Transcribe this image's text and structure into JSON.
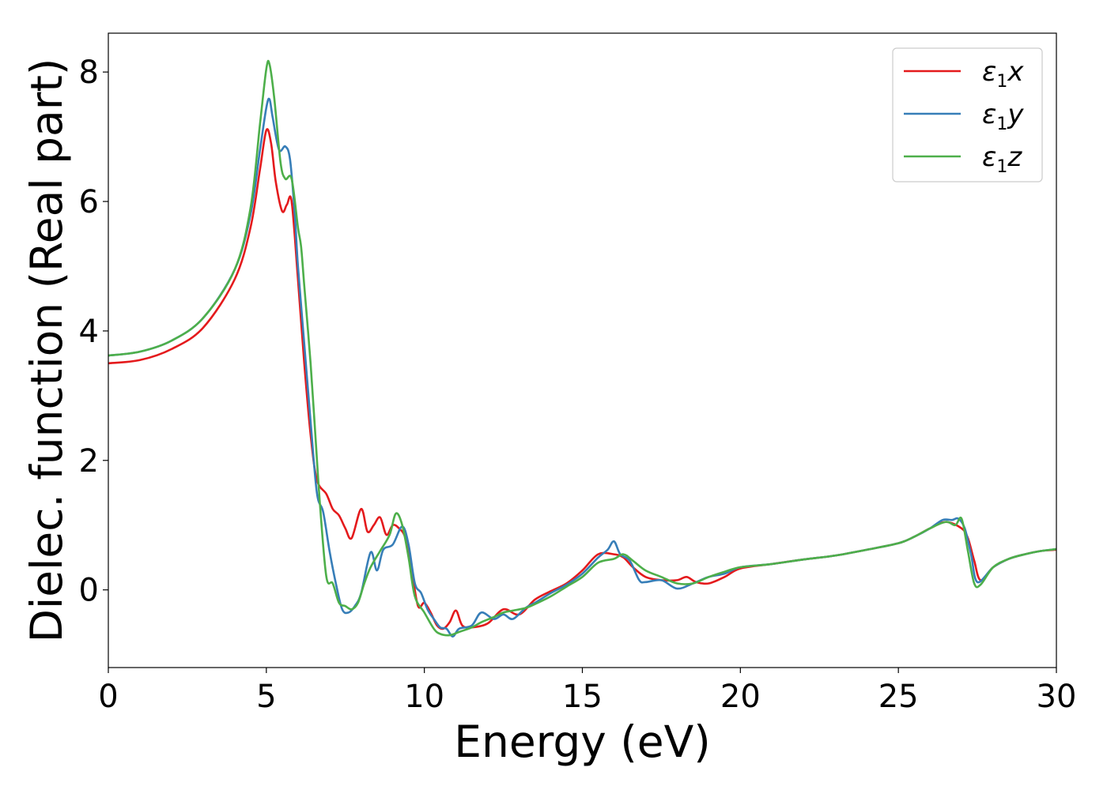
{
  "chart_data": {
    "type": "line",
    "xlabel": "Energy (eV)",
    "ylabel": "Dielec. function (Real part)",
    "xlim": [
      0,
      30
    ],
    "ylim": [
      -1.2,
      8.6
    ],
    "xticks": [
      0,
      5,
      10,
      15,
      20,
      25,
      30
    ],
    "yticks": [
      0,
      2,
      4,
      6,
      8
    ],
    "grid": false,
    "legend_position": "top-right",
    "series": [
      {
        "name": "ε1x",
        "legend": {
          "base": "ε",
          "sub": "1",
          "var": "x"
        },
        "color": "#e41a1c",
        "points": [
          [
            0,
            3.5
          ],
          [
            1,
            3.55
          ],
          [
            2,
            3.72
          ],
          [
            3,
            4.05
          ],
          [
            4,
            4.8
          ],
          [
            4.5,
            5.6
          ],
          [
            4.8,
            6.5
          ],
          [
            5.0,
            7.1
          ],
          [
            5.15,
            6.9
          ],
          [
            5.3,
            6.3
          ],
          [
            5.5,
            5.85
          ],
          [
            5.65,
            5.95
          ],
          [
            5.8,
            6.0
          ],
          [
            6.0,
            4.8
          ],
          [
            6.2,
            3.5
          ],
          [
            6.4,
            2.4
          ],
          [
            6.6,
            1.7
          ],
          [
            6.9,
            1.48
          ],
          [
            7.1,
            1.25
          ],
          [
            7.3,
            1.15
          ],
          [
            7.5,
            0.95
          ],
          [
            7.7,
            0.8
          ],
          [
            8.0,
            1.25
          ],
          [
            8.2,
            0.9
          ],
          [
            8.4,
            1.0
          ],
          [
            8.6,
            1.12
          ],
          [
            8.8,
            0.85
          ],
          [
            9.0,
            1.0
          ],
          [
            9.2,
            0.95
          ],
          [
            9.4,
            0.8
          ],
          [
            9.6,
            0.3
          ],
          [
            9.8,
            -0.25
          ],
          [
            10.0,
            -0.2
          ],
          [
            10.2,
            -0.35
          ],
          [
            10.4,
            -0.55
          ],
          [
            10.6,
            -0.6
          ],
          [
            10.8,
            -0.5
          ],
          [
            11.0,
            -0.32
          ],
          [
            11.2,
            -0.55
          ],
          [
            11.5,
            -0.58
          ],
          [
            12.0,
            -0.52
          ],
          [
            12.5,
            -0.3
          ],
          [
            13.0,
            -0.38
          ],
          [
            13.5,
            -0.15
          ],
          [
            14.0,
            -0.02
          ],
          [
            14.5,
            0.1
          ],
          [
            15.0,
            0.3
          ],
          [
            15.5,
            0.55
          ],
          [
            16.0,
            0.55
          ],
          [
            16.3,
            0.5
          ],
          [
            16.6,
            0.35
          ],
          [
            17.0,
            0.2
          ],
          [
            17.5,
            0.15
          ],
          [
            18.0,
            0.15
          ],
          [
            18.3,
            0.2
          ],
          [
            18.6,
            0.12
          ],
          [
            19.0,
            0.1
          ],
          [
            19.5,
            0.2
          ],
          [
            20,
            0.33
          ],
          [
            21,
            0.4
          ],
          [
            22,
            0.47
          ],
          [
            23,
            0.53
          ],
          [
            24,
            0.62
          ],
          [
            25,
            0.72
          ],
          [
            25.5,
            0.82
          ],
          [
            26,
            0.95
          ],
          [
            26.5,
            1.05
          ],
          [
            27.0,
            0.95
          ],
          [
            27.2,
            0.8
          ],
          [
            27.4,
            0.45
          ],
          [
            27.6,
            0.15
          ],
          [
            28,
            0.35
          ],
          [
            28.5,
            0.48
          ],
          [
            29,
            0.55
          ],
          [
            29.5,
            0.6
          ],
          [
            30,
            0.62
          ]
        ]
      },
      {
        "name": "ε1y",
        "legend": {
          "base": "ε",
          "sub": "1",
          "var": "y"
        },
        "color": "#377eb8",
        "points": [
          [
            0,
            3.62
          ],
          [
            1,
            3.68
          ],
          [
            2,
            3.85
          ],
          [
            3,
            4.2
          ],
          [
            4,
            4.95
          ],
          [
            4.5,
            5.8
          ],
          [
            4.8,
            6.8
          ],
          [
            5.0,
            7.45
          ],
          [
            5.1,
            7.58
          ],
          [
            5.2,
            7.3
          ],
          [
            5.4,
            6.8
          ],
          [
            5.6,
            6.85
          ],
          [
            5.75,
            6.65
          ],
          [
            5.9,
            5.8
          ],
          [
            6.0,
            5.0
          ],
          [
            6.2,
            3.8
          ],
          [
            6.4,
            2.6
          ],
          [
            6.6,
            1.5
          ],
          [
            6.8,
            1.2
          ],
          [
            7.0,
            0.6
          ],
          [
            7.2,
            0.1
          ],
          [
            7.4,
            -0.3
          ],
          [
            7.6,
            -0.35
          ],
          [
            7.8,
            -0.25
          ],
          [
            8.0,
            -0.05
          ],
          [
            8.3,
            0.58
          ],
          [
            8.5,
            0.3
          ],
          [
            8.7,
            0.62
          ],
          [
            9.0,
            0.7
          ],
          [
            9.3,
            0.98
          ],
          [
            9.5,
            0.7
          ],
          [
            9.7,
            0.1
          ],
          [
            9.9,
            -0.05
          ],
          [
            10.1,
            -0.3
          ],
          [
            10.3,
            -0.45
          ],
          [
            10.5,
            -0.58
          ],
          [
            10.7,
            -0.6
          ],
          [
            10.9,
            -0.72
          ],
          [
            11.1,
            -0.6
          ],
          [
            11.5,
            -0.55
          ],
          [
            11.8,
            -0.35
          ],
          [
            12.2,
            -0.45
          ],
          [
            12.5,
            -0.38
          ],
          [
            12.8,
            -0.45
          ],
          [
            13.2,
            -0.28
          ],
          [
            13.5,
            -0.2
          ],
          [
            14.0,
            -0.05
          ],
          [
            14.5,
            0.08
          ],
          [
            15.0,
            0.25
          ],
          [
            15.5,
            0.5
          ],
          [
            15.8,
            0.62
          ],
          [
            16.0,
            0.75
          ],
          [
            16.2,
            0.55
          ],
          [
            16.5,
            0.45
          ],
          [
            16.8,
            0.15
          ],
          [
            17.0,
            0.12
          ],
          [
            17.5,
            0.15
          ],
          [
            18.0,
            0.02
          ],
          [
            18.5,
            0.1
          ],
          [
            19,
            0.2
          ],
          [
            19.5,
            0.25
          ],
          [
            20,
            0.35
          ],
          [
            21,
            0.4
          ],
          [
            22,
            0.47
          ],
          [
            23,
            0.53
          ],
          [
            24,
            0.62
          ],
          [
            25,
            0.72
          ],
          [
            25.5,
            0.82
          ],
          [
            26,
            0.95
          ],
          [
            26.4,
            1.08
          ],
          [
            26.7,
            1.08
          ],
          [
            26.9,
            1.1
          ],
          [
            27.1,
            0.95
          ],
          [
            27.3,
            0.55
          ],
          [
            27.5,
            0.12
          ],
          [
            28,
            0.35
          ],
          [
            28.5,
            0.48
          ],
          [
            29,
            0.55
          ],
          [
            29.5,
            0.6
          ],
          [
            30,
            0.63
          ]
        ]
      },
      {
        "name": "ε1z",
        "legend": {
          "base": "ε",
          "sub": "1",
          "var": "z"
        },
        "color": "#4daf4a",
        "points": [
          [
            0,
            3.62
          ],
          [
            1,
            3.68
          ],
          [
            2,
            3.85
          ],
          [
            3,
            4.2
          ],
          [
            4,
            4.95
          ],
          [
            4.5,
            5.9
          ],
          [
            4.8,
            7.2
          ],
          [
            5.0,
            8.05
          ],
          [
            5.1,
            8.12
          ],
          [
            5.25,
            7.6
          ],
          [
            5.45,
            6.6
          ],
          [
            5.6,
            6.35
          ],
          [
            5.8,
            6.35
          ],
          [
            6.0,
            5.6
          ],
          [
            6.1,
            5.3
          ],
          [
            6.2,
            4.7
          ],
          [
            6.4,
            3.5
          ],
          [
            6.55,
            2.4
          ],
          [
            6.7,
            1.3
          ],
          [
            6.9,
            0.2
          ],
          [
            7.1,
            0.1
          ],
          [
            7.3,
            -0.2
          ],
          [
            7.5,
            -0.25
          ],
          [
            7.7,
            -0.3
          ],
          [
            7.9,
            -0.2
          ],
          [
            8.1,
            0.1
          ],
          [
            8.3,
            0.35
          ],
          [
            8.6,
            0.6
          ],
          [
            8.9,
            0.85
          ],
          [
            9.1,
            1.18
          ],
          [
            9.3,
            1.0
          ],
          [
            9.5,
            0.5
          ],
          [
            9.7,
            -0.1
          ],
          [
            10.0,
            -0.35
          ],
          [
            10.3,
            -0.6
          ],
          [
            10.5,
            -0.68
          ],
          [
            10.8,
            -0.7
          ],
          [
            11.1,
            -0.65
          ],
          [
            11.5,
            -0.58
          ],
          [
            11.8,
            -0.5
          ],
          [
            12.2,
            -0.42
          ],
          [
            12.5,
            -0.35
          ],
          [
            12.8,
            -0.32
          ],
          [
            13.2,
            -0.28
          ],
          [
            13.5,
            -0.22
          ],
          [
            14.0,
            -0.1
          ],
          [
            14.5,
            0.05
          ],
          [
            15.0,
            0.2
          ],
          [
            15.5,
            0.42
          ],
          [
            16.0,
            0.48
          ],
          [
            16.3,
            0.55
          ],
          [
            16.6,
            0.45
          ],
          [
            17.0,
            0.3
          ],
          [
            17.5,
            0.2
          ],
          [
            18.0,
            0.1
          ],
          [
            18.5,
            0.1
          ],
          [
            19,
            0.2
          ],
          [
            19.5,
            0.28
          ],
          [
            20,
            0.35
          ],
          [
            21,
            0.4
          ],
          [
            22,
            0.47
          ],
          [
            23,
            0.53
          ],
          [
            24,
            0.62
          ],
          [
            25,
            0.72
          ],
          [
            25.5,
            0.82
          ],
          [
            26,
            0.95
          ],
          [
            26.5,
            1.05
          ],
          [
            26.8,
            1.0
          ],
          [
            27.0,
            1.1
          ],
          [
            27.2,
            0.6
          ],
          [
            27.4,
            0.1
          ],
          [
            27.6,
            0.08
          ],
          [
            28,
            0.35
          ],
          [
            28.5,
            0.48
          ],
          [
            29,
            0.55
          ],
          [
            29.5,
            0.6
          ],
          [
            30,
            0.63
          ]
        ]
      }
    ]
  }
}
